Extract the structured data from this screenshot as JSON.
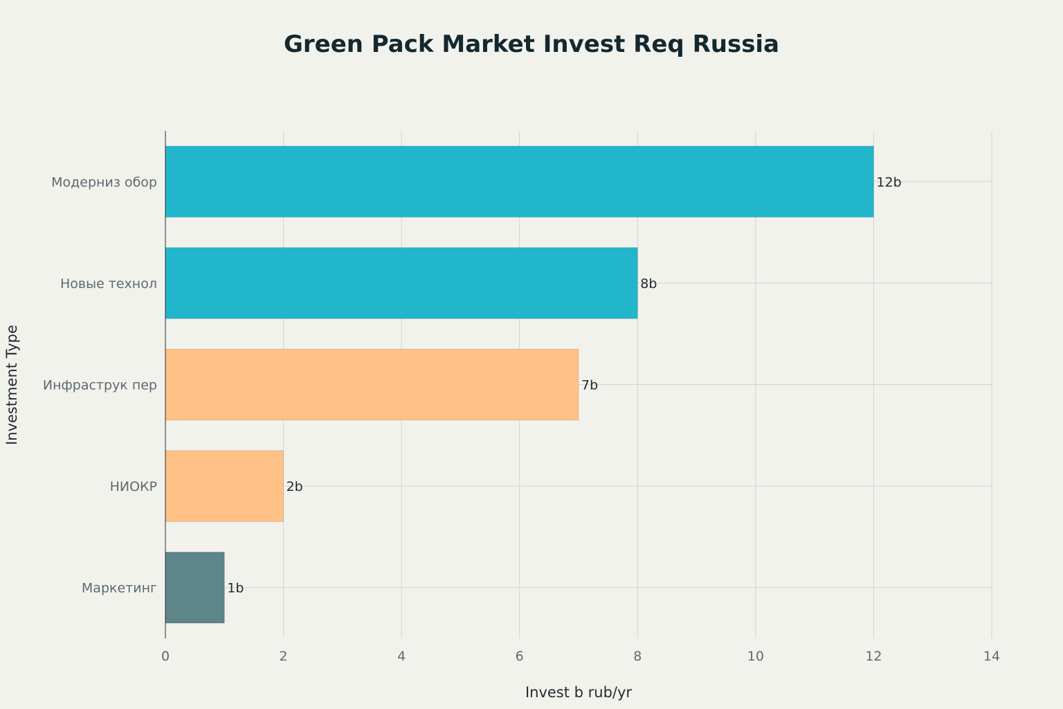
{
  "chart_data": {
    "type": "bar",
    "orientation": "horizontal",
    "title": "Green Pack Market Invest Req Russia",
    "xlabel": "Invest b rub/yr",
    "ylabel": "Investment Type",
    "categories": [
      "Модерниз обор",
      "Новые технол",
      "Инфраструк пер",
      "НИОКР",
      "Маркетинг"
    ],
    "values": [
      12,
      8,
      7,
      2,
      1
    ],
    "data_labels": [
      "12b",
      "8b",
      "7b",
      "2b",
      "1b"
    ],
    "bar_colors": [
      "#21b6cc",
      "#21b6cc",
      "#ffc185",
      "#ffc185",
      "#5e8589"
    ],
    "xlim": [
      0,
      14
    ],
    "xticks": [
      0,
      2,
      4,
      6,
      8,
      10,
      12,
      14
    ],
    "xtick_labels": [
      "0",
      "2",
      "4",
      "6",
      "8",
      "10",
      "12",
      "14"
    ],
    "grid": true,
    "legend": "none"
  }
}
